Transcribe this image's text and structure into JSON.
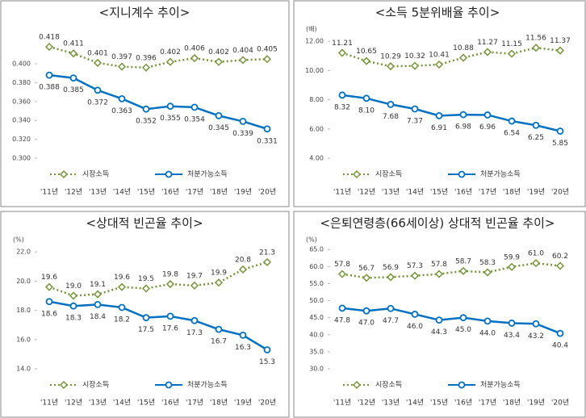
{
  "chart_data": [
    {
      "type": "line",
      "title": "<지니계수 추이>",
      "categories": [
        "'11년",
        "'12년",
        "'13년",
        "'14년",
        "'15년",
        "'16년",
        "'17년",
        "'18년",
        "'19년",
        "'20년"
      ],
      "series": [
        {
          "name": "시장소득",
          "color": "#77933c",
          "values": [
            0.418,
            0.411,
            0.401,
            0.397,
            0.396,
            0.402,
            0.406,
            0.402,
            0.404,
            0.405
          ],
          "value_labels": [
            "0.418",
            "0.411",
            "0.401",
            "0.397",
            "0.396",
            "0.402",
            "0.406",
            "0.402",
            "0.404",
            "0.405"
          ]
        },
        {
          "name": "처분가능소득",
          "color": "#0070c0",
          "values": [
            0.388,
            0.385,
            0.372,
            0.363,
            0.352,
            0.355,
            0.354,
            0.345,
            0.339,
            0.331
          ],
          "value_labels": [
            "0.388",
            "0.385",
            "0.372",
            "0.363",
            "0.352",
            "0.355",
            "0.354",
            "0.345",
            "0.339",
            "0.331"
          ]
        }
      ],
      "ylim": [
        0.3,
        0.43
      ],
      "yticks": [
        {
          "value": 0.3,
          "label": "0.300"
        },
        {
          "value": 0.32,
          "label": "0.320"
        },
        {
          "value": 0.34,
          "label": "0.340"
        },
        {
          "value": 0.36,
          "label": "0.360"
        },
        {
          "value": 0.38,
          "label": "0.380"
        },
        {
          "value": 0.4,
          "label": "0.400"
        }
      ]
    },
    {
      "type": "line",
      "title": "<소득 5분위배율 추이>",
      "unit": "(배)",
      "categories": [
        "'11년",
        "'12년",
        "'13년",
        "'14년",
        "'15년",
        "'16년",
        "'17년",
        "'18년",
        "'19년",
        "'20년"
      ],
      "series": [
        {
          "name": "시장소득",
          "color": "#77933c",
          "values": [
            11.21,
            10.65,
            10.29,
            10.32,
            10.41,
            10.88,
            11.27,
            11.15,
            11.56,
            11.37
          ],
          "value_labels": [
            "11.21",
            "10.65",
            "10.29",
            "10.32",
            "10.41",
            "10.88",
            "11.27",
            "11.15",
            "11.56",
            "11.37"
          ]
        },
        {
          "name": "처분가능소득",
          "color": "#0070c0",
          "values": [
            8.32,
            8.1,
            7.68,
            7.37,
            6.91,
            6.98,
            6.96,
            6.54,
            6.25,
            5.85
          ],
          "value_labels": [
            "8.32",
            "8.10",
            "7.68",
            "7.37",
            "6.91",
            "6.98",
            "6.96",
            "6.54",
            "6.25",
            "5.85"
          ]
        }
      ],
      "ylim": [
        4,
        12.4
      ],
      "yticks": [
        {
          "value": 4,
          "label": "4.00"
        },
        {
          "value": 6,
          "label": "6.00"
        },
        {
          "value": 8,
          "label": "8.00"
        },
        {
          "value": 10,
          "label": "10.00"
        },
        {
          "value": 12,
          "label": "12.00"
        }
      ]
    },
    {
      "type": "line",
      "title": "<상대적 빈곤율 추이>",
      "unit": "(%)",
      "categories": [
        "'11년",
        "'12년",
        "'13년",
        "'14년",
        "'15년",
        "'16년",
        "'17년",
        "'18년",
        "'19년",
        "'20년"
      ],
      "series": [
        {
          "name": "시장소득",
          "color": "#77933c",
          "values": [
            19.6,
            19.0,
            19.1,
            19.6,
            19.5,
            19.8,
            19.7,
            19.9,
            20.8,
            21.3
          ],
          "value_labels": [
            "19.6",
            "19.0",
            "19.1",
            "19.6",
            "19.5",
            "19.8",
            "19.7",
            "19.9",
            "20.8",
            "21.3"
          ]
        },
        {
          "name": "처분가능소득",
          "color": "#0070c0",
          "values": [
            18.6,
            18.3,
            18.4,
            18.2,
            17.5,
            17.6,
            17.3,
            16.7,
            16.3,
            15.3
          ],
          "value_labels": [
            "18.6",
            "18.3",
            "18.4",
            "18.2",
            "17.5",
            "17.6",
            "17.3",
            "16.7",
            "16.3",
            "15.3"
          ]
        }
      ],
      "ylim": [
        14,
        22.4
      ],
      "yticks": [
        {
          "value": 14,
          "label": "14.0"
        },
        {
          "value": 16,
          "label": "16.0"
        },
        {
          "value": 18,
          "label": "18.0"
        },
        {
          "value": 20,
          "label": "20.0"
        },
        {
          "value": 22,
          "label": "22.0"
        }
      ]
    },
    {
      "type": "line",
      "title": "<은퇴연령층(66세이상) 상대적 빈곤율 추이>",
      "unit": "(%)",
      "categories": [
        "'11년",
        "'12년",
        "'13년",
        "'14년",
        "'15년",
        "'16년",
        "'17년",
        "'18년",
        "'19년",
        "'20년"
      ],
      "series": [
        {
          "name": "시장소득",
          "color": "#77933c",
          "values": [
            57.8,
            56.7,
            56.9,
            57.3,
            57.8,
            58.7,
            58.3,
            59.9,
            61.0,
            60.2
          ],
          "value_labels": [
            "57.8",
            "56.7",
            "56.9",
            "57.3",
            "57.8",
            "58.7",
            "58.3",
            "59.9",
            "61.0",
            "60.2"
          ]
        },
        {
          "name": "처분가능소득",
          "color": "#0070c0",
          "values": [
            47.8,
            47.0,
            47.7,
            46.0,
            44.3,
            45.0,
            44.0,
            43.4,
            43.2,
            40.4
          ],
          "value_labels": [
            "47.8",
            "47.0",
            "47.7",
            "46.0",
            "44.3",
            "45.0",
            "44.0",
            "43.4",
            "43.2",
            "40.4"
          ]
        }
      ],
      "ylim": [
        30,
        66
      ],
      "yticks": [
        {
          "value": 30,
          "label": "30.0"
        },
        {
          "value": 35,
          "label": "35.0"
        },
        {
          "value": 40,
          "label": "40.0"
        },
        {
          "value": 45,
          "label": "45.0"
        },
        {
          "value": 50,
          "label": "50.0"
        },
        {
          "value": 55,
          "label": "55.0"
        },
        {
          "value": 60,
          "label": "60.0"
        },
        {
          "value": 65,
          "label": "65.0"
        }
      ]
    }
  ]
}
